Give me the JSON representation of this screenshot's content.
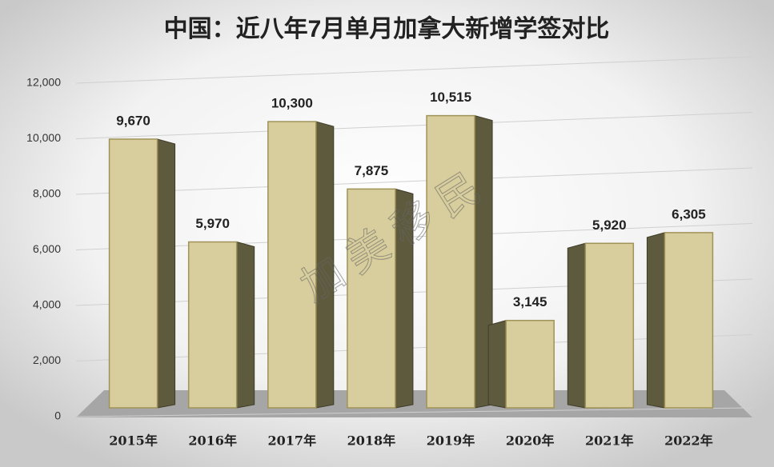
{
  "chart_data": {
    "type": "bar",
    "title": "中国：近八年7月单月加拿大新增学签对比",
    "categories": [
      "2015年",
      "2016年",
      "2017年",
      "2018年",
      "2019年",
      "2020年",
      "2021年",
      "2022年"
    ],
    "values": [
      9670,
      5970,
      10300,
      7875,
      10515,
      3145,
      5920,
      6305
    ],
    "value_labels": [
      "9,670",
      "5,970",
      "10,300",
      "7,875",
      "10,515",
      "3,145",
      "5,920",
      "6,305"
    ],
    "color": "#d8cd9c",
    "ylim": [
      0,
      12000
    ],
    "yticks": [
      0,
      {
        "value": 2000,
        "label": "2,000"
      },
      {
        "value": 4000,
        "label": "4,000"
      },
      {
        "value": 6000,
        "label": "6,000"
      },
      {
        "value": 8000,
        "label": "8,000"
      },
      {
        "value": 10000,
        "label": "10,000"
      },
      {
        "value": 12000,
        "label": "12,000"
      }
    ],
    "grid": true,
    "watermark": "加 美 移 民"
  }
}
